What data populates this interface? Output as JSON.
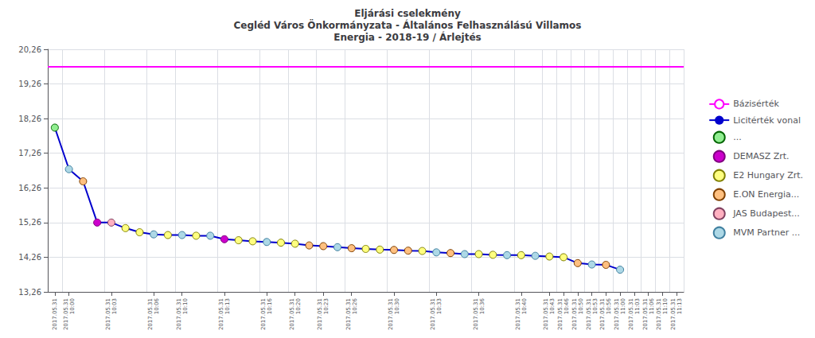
{
  "chart_data": {
    "type": "line",
    "title": "Eljárási cselekmény\nCegléd Város Önkormányzata - Általános Felhasználású Villamos\nEnergia - 2018-19 / Árlejtés",
    "categories": [
      "2017.05.31",
      "2017.05.31\n10:00",
      null,
      null,
      "2017.05.31\n10:03",
      null,
      null,
      "2017.05.31\n10:06",
      null,
      "2017.05.31\n10:10",
      null,
      null,
      "2017.05.31\n10:13",
      null,
      null,
      "2017.05.31\n10:16",
      null,
      "2017.05.31\n10:20",
      null,
      "2017.05.31\n10:23",
      null,
      "2017.05.31\n10:26",
      null,
      null,
      "2017.05.31\n10:30",
      null,
      null,
      "2017.05.31\n10:33",
      null,
      null,
      "2017.05.31\n10:36",
      null,
      null,
      "2017.05.31\n10:40",
      null,
      "2017.05.31\n10:43",
      "2017.05.31\n10:46",
      "2017.05.31\n10:50",
      "2017.05.31\n10:53",
      "2017.05.31\n10:56",
      "2017.05.31\n11:00",
      "2017.05.31\n11:03",
      "2017.05.31\n11:06",
      "2017.05.31\n11:10",
      "2017.05.31\n11:13"
    ],
    "series": [
      {
        "name": "Bázisérték",
        "type": "hline",
        "color": "#ff00ff",
        "value": 19.76
      },
      {
        "name": "Licitérték vonal",
        "type": "line",
        "color": "#0000cd",
        "values": [
          18.0,
          16.8,
          16.45,
          15.26,
          15.26,
          15.1,
          14.98,
          14.92,
          14.9,
          14.9,
          14.88,
          14.88,
          14.78,
          14.75,
          14.72,
          14.7,
          14.68,
          14.65,
          14.6,
          14.58,
          14.55,
          14.52,
          14.5,
          14.48,
          14.47,
          14.45,
          14.44,
          14.4,
          14.38,
          14.35,
          14.35,
          14.33,
          14.32,
          14.32,
          14.3,
          14.28,
          14.26,
          14.09,
          14.05,
          14.04,
          13.9,
          null,
          null,
          null,
          null
        ],
        "companies": [
          "...",
          "MVM Partner ...",
          "E.ON Energia...",
          "DEMASZ Zrt.",
          "JAS Budapest...",
          "E2 Hungary Zrt.",
          "E2 Hungary Zrt.",
          "MVM Partner ...",
          "E2 Hungary Zrt.",
          "MVM Partner ...",
          "E2 Hungary Zrt.",
          "MVM Partner ...",
          "DEMASZ Zrt.",
          "E2 Hungary Zrt.",
          "E2 Hungary Zrt.",
          "MVM Partner ...",
          "E2 Hungary Zrt.",
          "E2 Hungary Zrt.",
          "E.ON Energia...",
          "E.ON Energia...",
          "MVM Partner ...",
          "E.ON Energia...",
          "E2 Hungary Zrt.",
          "E2 Hungary Zrt.",
          "E.ON Energia...",
          "E.ON Energia...",
          "E2 Hungary Zrt.",
          "MVM Partner ...",
          "E.ON Energia...",
          "MVM Partner ...",
          "E2 Hungary Zrt.",
          "E2 Hungary Zrt.",
          "MVM Partner ...",
          "E2 Hungary Zrt.",
          "MVM Partner ...",
          "E2 Hungary Zrt.",
          "E2 Hungary Zrt.",
          "E.ON Energia...",
          "MVM Partner ...",
          "E.ON Energia...",
          "MVM Partner ...",
          null,
          null,
          null,
          null
        ]
      }
    ],
    "companies": [
      {
        "name": "...",
        "color": "#90ee90",
        "edge_color": "#006400"
      },
      {
        "name": "DEMASZ Zrt.",
        "color": "#cc00cc",
        "edge_color": "#800080"
      },
      {
        "name": "E2 Hungary Zrt.",
        "color": "#ffff80",
        "edge_color": "#808000"
      },
      {
        "name": "E.ON Energia...",
        "color": "#ffc080",
        "edge_color": "#804000"
      },
      {
        "name": "JAS Budapest...",
        "color": "#ffb0c0",
        "edge_color": "#804060"
      },
      {
        "name": "MVM Partner ...",
        "color": "#add8e6",
        "edge_color": "#4080a0"
      }
    ],
    "ylim": [
      13.26,
      20.26
    ],
    "yticks": [
      {
        "value": 13.26,
        "label": "13,26"
      },
      {
        "value": 14.26,
        "label": "14,26"
      },
      {
        "value": 15.26,
        "label": "15,26"
      },
      {
        "value": 16.26,
        "label": "16,26"
      },
      {
        "value": 17.26,
        "label": "17,26"
      },
      {
        "value": 18.26,
        "label": "18,26"
      },
      {
        "value": 19.26,
        "label": "19,26"
      },
      {
        "value": 20.26,
        "label": "20,26"
      }
    ],
    "grid": true,
    "legend": "right"
  }
}
